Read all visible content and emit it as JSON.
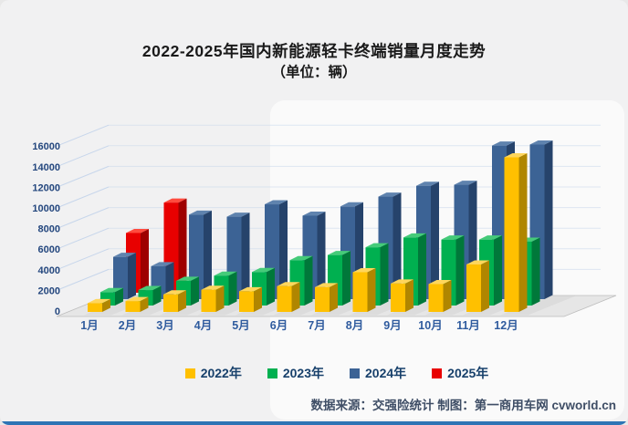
{
  "title": {
    "line1": "2022-2025年国内新能源轻卡终端销量月度走势",
    "line2": "（单位：辆）"
  },
  "footer": {
    "text": "数据来源：交强险统计 制图：第一商用车网 cvworld.cn"
  },
  "colors": {
    "background": "#F1F1F2",
    "bottom_bar": "#2E74B5",
    "grid": "#C7D6EB",
    "axis_text": "#24477E",
    "month_text": "#2F5B9E",
    "floor": "#E6E6E6",
    "floor_edge": "#BDBDBD",
    "shadow": "#D3D3D3"
  },
  "chart_data": {
    "type": "bar",
    "projection": "3d-column",
    "title": "2022-2025年国内新能源轻卡终端销量月度走势（单位：辆）",
    "categories": [
      "1月",
      "2月",
      "3月",
      "4月",
      "5月",
      "6月",
      "7月",
      "8月",
      "9月",
      "10月",
      "11月",
      "12月"
    ],
    "series": [
      {
        "name": "2022年",
        "color": "#FFC000",
        "top": "#FFD65C",
        "side": "#B08600",
        "values": [
          850,
          1050,
          1700,
          2150,
          2000,
          2500,
          2400,
          3850,
          2750,
          2700,
          4600,
          15000
        ]
      },
      {
        "name": "2023年",
        "color": "#00B050",
        "top": "#45CB79",
        "side": "#00783A",
        "values": [
          1300,
          1500,
          2400,
          2900,
          3250,
          4400,
          4900,
          5650,
          6600,
          6400,
          6400,
          6200
        ]
      },
      {
        "name": "2024年",
        "color": "#3C6395",
        "top": "#5F83AE",
        "side": "#26436B",
        "values": [
          4100,
          3200,
          8200,
          8000,
          9200,
          8100,
          9000,
          9950,
          11000,
          11100,
          14900,
          15000
        ]
      },
      {
        "name": "2025年",
        "color": "#E80000",
        "top": "#FF4B3E",
        "side": "#9E0000",
        "values": [
          5800,
          8750,
          null,
          null,
          null,
          null,
          null,
          null,
          null,
          null,
          null,
          null
        ]
      }
    ],
    "ylim": [
      0,
      16000
    ],
    "ytick_step": 2000,
    "yticks": [
      0,
      2000,
      4000,
      6000,
      8000,
      10000,
      12000,
      14000,
      16000
    ],
    "legend_position": "bottom",
    "grid": "diagonal-depth-lines"
  }
}
